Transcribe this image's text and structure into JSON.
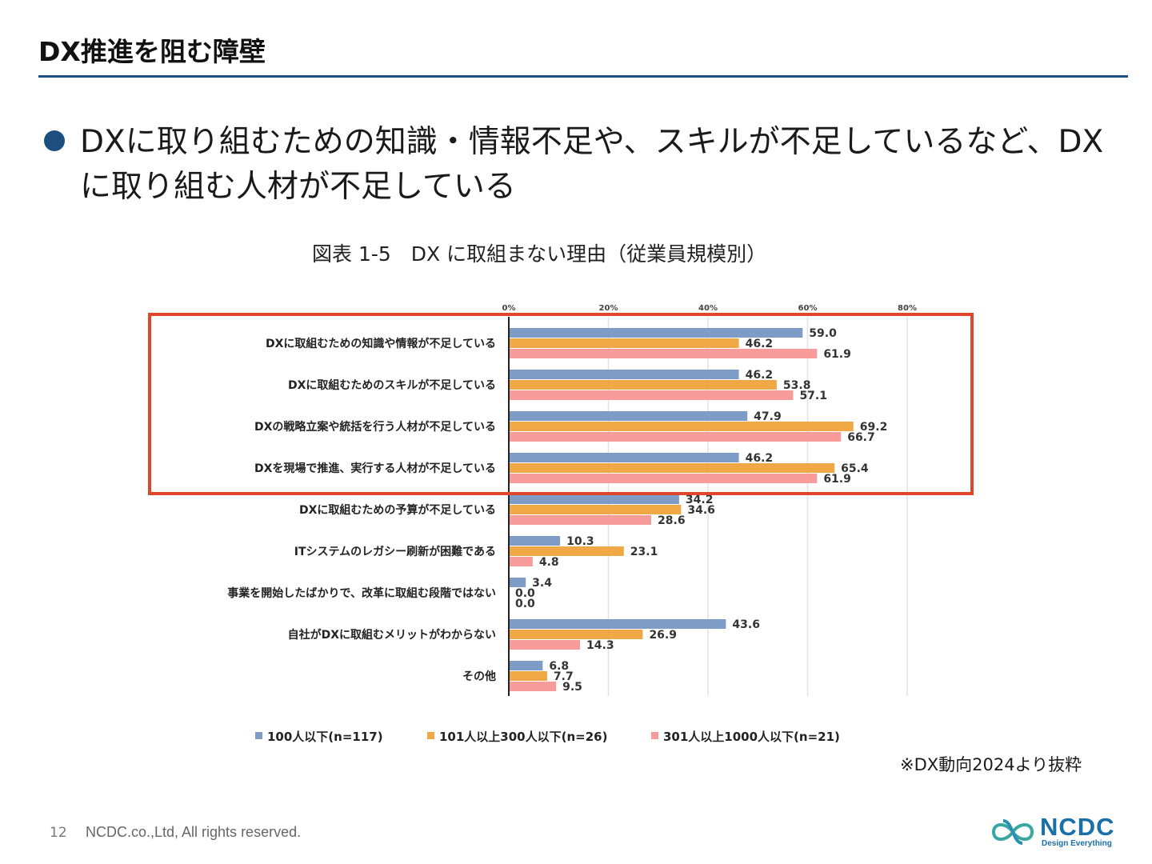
{
  "slide": {
    "title": "DX推進を阻む障壁",
    "bullet": "DXに取り組むための知識・情報不足や、スキルが不足しているなど、DXに取り組む人材が不足している",
    "source_note": "※DX動向2024より抜粋",
    "page_number": "12",
    "copyright": "NCDC.co.,Ltd, All rights reserved.",
    "logo_text": "NCDC",
    "logo_tagline": "Design Everything"
  },
  "colors": {
    "title_rule": "#1c4e80",
    "series1": "#7f9cc6",
    "series2": "#f0a847",
    "series3": "#f79b9b",
    "highlight_box": "#e0462a"
  },
  "chart_data": {
    "type": "bar",
    "orientation": "horizontal",
    "title": "図表 1-5　DX に取組まない理由（従業員規模別）",
    "categories": [
      "DXに取組むための知識や情報が不足している",
      "DXに取組むためのスキルが不足している",
      "DXの戦略立案や統括を行う人材が不足している",
      "DXを現場で推進、実行する人材が不足している",
      "DXに取組むための予算が不足している",
      "ITシステムのレガシー刷新が困難である",
      "事業を開始したばかりで、改革に取組む段階ではない",
      "自社がDXに取組むメリットがわからない",
      "その他"
    ],
    "series": [
      {
        "name": "100人以下(n=117)",
        "values": [
          59.0,
          46.2,
          47.9,
          46.2,
          34.2,
          10.3,
          3.4,
          43.6,
          6.8
        ]
      },
      {
        "name": "101人以上300人以下(n=26)",
        "values": [
          46.2,
          53.8,
          69.2,
          65.4,
          34.6,
          23.1,
          0.0,
          26.9,
          7.7
        ]
      },
      {
        "name": "301人以上1000人以下(n=21)",
        "values": [
          61.9,
          57.1,
          66.7,
          61.9,
          28.6,
          4.8,
          0.0,
          14.3,
          9.5
        ]
      }
    ],
    "x_ticks": [
      "0%",
      "20%",
      "40%",
      "60%",
      "80%"
    ],
    "xlim": [
      0,
      80
    ],
    "grid": true,
    "legend_position": "bottom",
    "highlighted_categories": [
      0,
      1,
      2,
      3
    ]
  }
}
